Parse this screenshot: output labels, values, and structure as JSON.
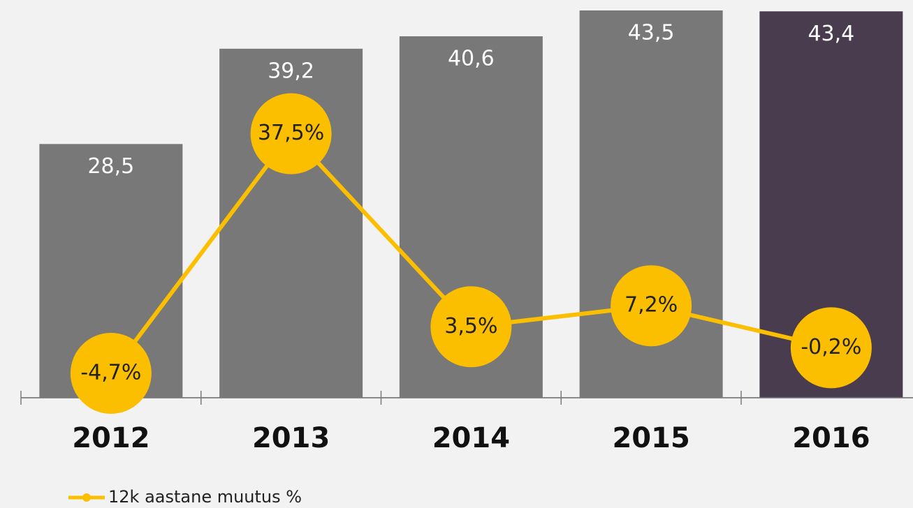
{
  "chart_data": {
    "type": "bar",
    "categories": [
      "2012",
      "2013",
      "2014",
      "2015",
      "2016"
    ],
    "series": [
      {
        "type": "bar",
        "colors": [
          "#787878",
          "#787878",
          "#787878",
          "#787878",
          "#4a3c4f"
        ],
        "values": [
          28.5,
          39.2,
          40.6,
          43.5,
          43.4
        ],
        "value_labels": [
          "28,5",
          "39,2",
          "40,6",
          "43,5",
          "43,4"
        ]
      },
      {
        "type": "line",
        "name": "12k aastane muutus %",
        "axis": "y2",
        "color": "#fcbf00",
        "values": [
          -4.7,
          37.5,
          3.5,
          7.2,
          -0.2
        ],
        "value_labels": [
          "-4,7%",
          "37,5%",
          "3,5%",
          "7,2%",
          "-0,2%"
        ]
      }
    ],
    "ylim": [
      0,
      44
    ],
    "y2lim": [
      -9,
      60
    ]
  }
}
